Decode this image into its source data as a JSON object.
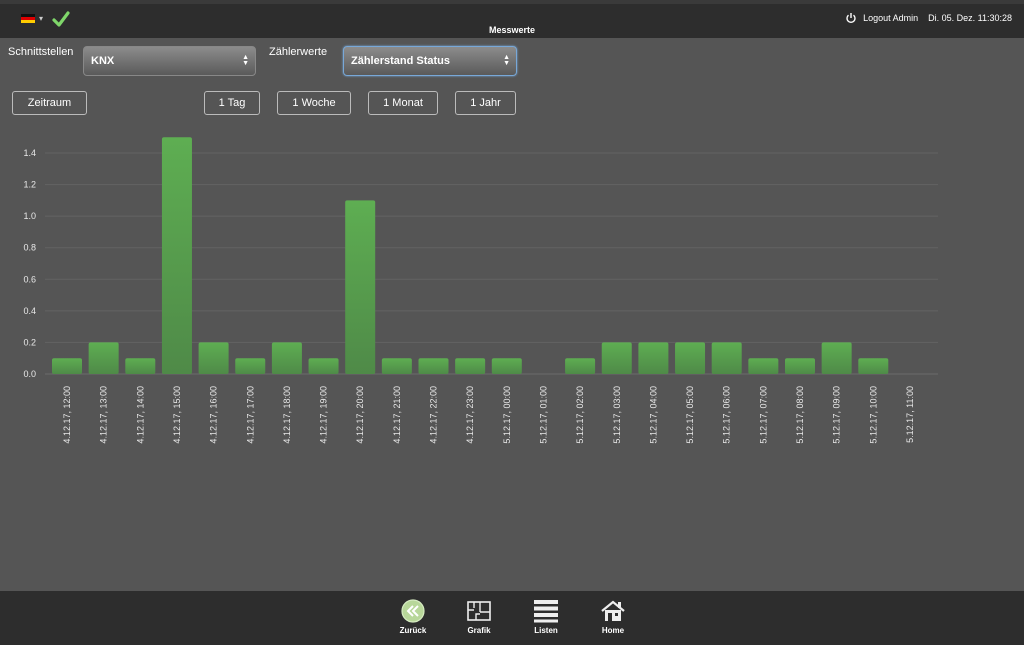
{
  "header": {
    "title": "Messwerte",
    "logout_label": "Logout Admin",
    "datetime": "Di. 05. Dez. 11:30:28"
  },
  "controls": {
    "interface_label": "Schnittstellen",
    "interface_value": "KNX",
    "counter_label": "Zählerwerte",
    "counter_value": "Zählerstand Status",
    "period_button": "Zeitraum",
    "ranges": [
      "1 Tag",
      "1 Woche",
      "1 Monat",
      "1 Jahr"
    ]
  },
  "chart_data": {
    "type": "bar",
    "categories": [
      "4.12.17, 12:00",
      "4.12.17, 13:00",
      "4.12.17, 14:00",
      "4.12.17, 15:00",
      "4.12.17, 16:00",
      "4.12.17, 17:00",
      "4.12.17, 18:00",
      "4.12.17, 19:00",
      "4.12.17, 20:00",
      "4.12.17, 21:00",
      "4.12.17, 22:00",
      "4.12.17, 23:00",
      "5.12.17, 00:00",
      "5.12.17, 01:00",
      "5.12.17, 02:00",
      "5.12.17, 03:00",
      "5.12.17, 04:00",
      "5.12.17, 05:00",
      "5.12.17, 06:00",
      "5.12.17, 07:00",
      "5.12.17, 08:00",
      "5.12.17, 09:00",
      "5.12.17, 10:00",
      "5.12.17, 11:00"
    ],
    "values": [
      0.1,
      0.2,
      0.1,
      1.5,
      0.2,
      0.1,
      0.2,
      0.1,
      1.1,
      0.1,
      0.1,
      0.1,
      0.1,
      0,
      0.1,
      0.2,
      0.2,
      0.2,
      0.2,
      0.1,
      0.1,
      0.2,
      0.1,
      0
    ],
    "yticks": [
      "0.0",
      "0.2",
      "0.4",
      "0.6",
      "0.8",
      "1.0",
      "1.2",
      "1.4"
    ],
    "ylim": [
      0,
      1.5
    ],
    "grid": true,
    "bar_color": "#5aa84e"
  },
  "footer": {
    "items": [
      {
        "label": "Zurück",
        "icon": "back-icon"
      },
      {
        "label": "Grafik",
        "icon": "floorplan-icon"
      },
      {
        "label": "Listen",
        "icon": "list-icon"
      },
      {
        "label": "Home",
        "icon": "home-icon"
      }
    ]
  }
}
